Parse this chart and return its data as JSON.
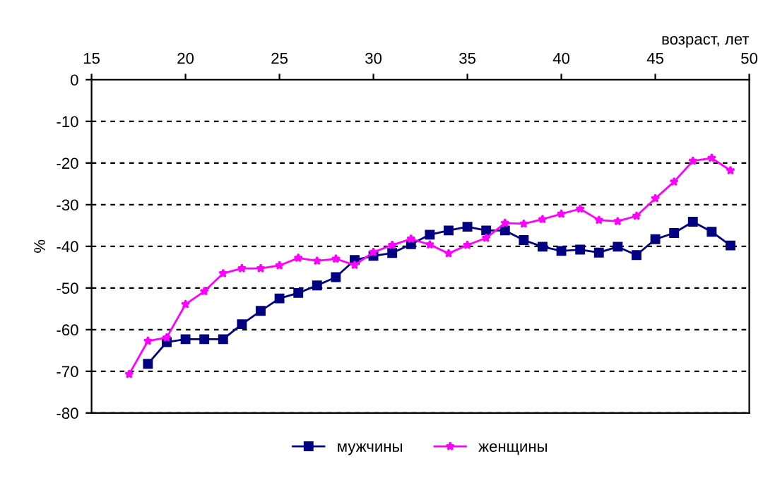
{
  "chart_data": {
    "type": "line",
    "xlabel": "возраст, лет",
    "ylabel": "%",
    "xlim": [
      15,
      50
    ],
    "xticks": [
      15,
      20,
      25,
      30,
      35,
      40,
      45,
      50
    ],
    "ylim": [
      -80,
      0
    ],
    "yticks": [
      -80,
      -70,
      -60,
      -50,
      -40,
      -30,
      -20,
      -10,
      0
    ],
    "grid": "y",
    "legend": "bottom",
    "series": [
      {
        "name": "мужчины",
        "color": "#000080",
        "marker": "square",
        "x": [
          18,
          19,
          20,
          21,
          22,
          23,
          24,
          25,
          26,
          27,
          28,
          29,
          30,
          31,
          32,
          33,
          34,
          35,
          36,
          37,
          38,
          39,
          40,
          41,
          42,
          43,
          44,
          45,
          46,
          47,
          48,
          49
        ],
        "values": [
          -68.2,
          -63,
          -62.3,
          -62.3,
          -62.3,
          -58.7,
          -55.5,
          -52.5,
          -51.2,
          -49.4,
          -47.4,
          -43.3,
          -42.3,
          -41.6,
          -39.5,
          -37.2,
          -36.2,
          -35.3,
          -36.2,
          -36.2,
          -38.5,
          -40.1,
          -41.1,
          -40.8,
          -41.5,
          -40.1,
          -42.1,
          -38.3,
          -36.8,
          -34.1,
          -36.5,
          -39.8
        ]
      },
      {
        "name": "женщины",
        "color": "#ff00ff",
        "marker": "star",
        "x": [
          17,
          18,
          19,
          20,
          21,
          22,
          23,
          24,
          25,
          26,
          27,
          28,
          29,
          30,
          31,
          32,
          33,
          34,
          35,
          36,
          37,
          38,
          39,
          40,
          41,
          42,
          43,
          44,
          45,
          46,
          47,
          48,
          49
        ],
        "values": [
          -70.7,
          -62.7,
          -61.9,
          -53.9,
          -50.8,
          -46.5,
          -45.3,
          -45.3,
          -44.6,
          -42.8,
          -43.5,
          -43.0,
          -44.5,
          -41.4,
          -39.7,
          -38.2,
          -39.6,
          -41.7,
          -39.7,
          -38.0,
          -34.4,
          -34.6,
          -33.5,
          -32.2,
          -31.0,
          -33.7,
          -34.0,
          -32.7,
          -28.5,
          -24.5,
          -19.5,
          -18.8,
          -21.8
        ]
      }
    ]
  }
}
